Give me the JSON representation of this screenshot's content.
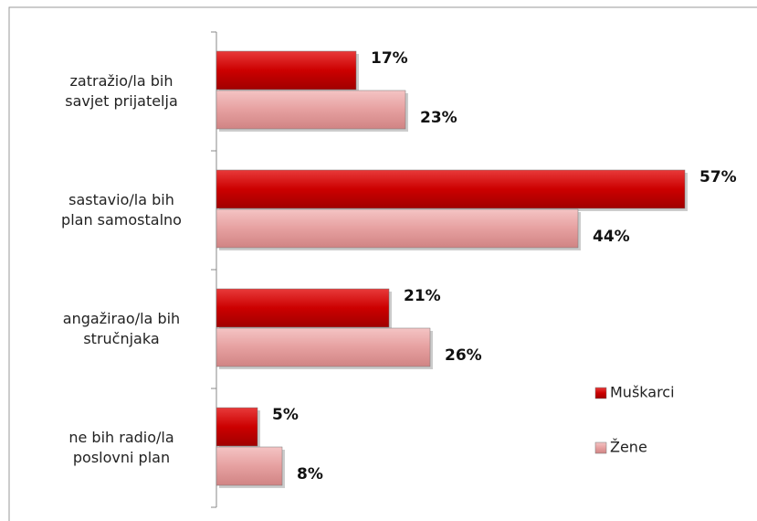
{
  "chart_data": {
    "type": "bar",
    "orientation": "horizontal",
    "categories": [
      "zatražio/la bih\nsavjet prijatelja",
      "sastavio/la bih\nplan samostalno",
      "angažirao/la bih\nstručnjaka",
      "ne bih radio/la\nposlovni plan"
    ],
    "series": [
      {
        "name": "Muškarci",
        "color": "#cc0000",
        "values": [
          17,
          57,
          21,
          5
        ],
        "value_labels": [
          "17%",
          "57%",
          "21%",
          "5%"
        ]
      },
      {
        "name": "Žene",
        "color": "#e6a0a0",
        "values": [
          23,
          44,
          26,
          8
        ],
        "value_labels": [
          "23%",
          "44%",
          "26%",
          "8%"
        ]
      }
    ],
    "legend": "right"
  }
}
